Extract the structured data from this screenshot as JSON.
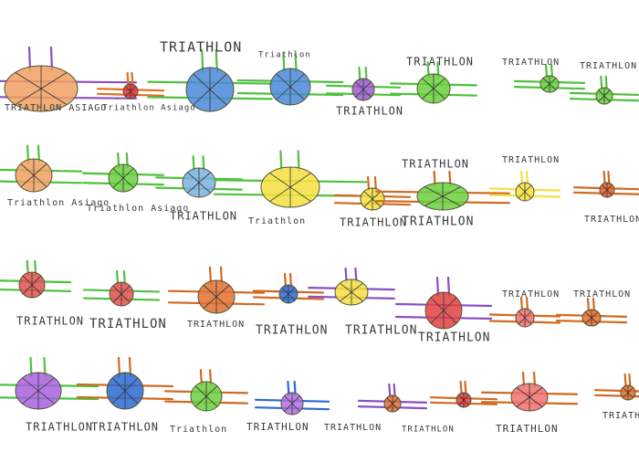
{
  "labels": [
    "TRIATHLON ASIAGO",
    "Triathlon Asiago",
    "TRIATHLON",
    "Triathlon",
    "TRIATHLON",
    "TRIATHLON",
    "TRIATHLON",
    "TRIATHLON",
    "Triathlon Asiago",
    "Triathlon Asiago",
    "TRIATHLON",
    "Triathlon",
    "TRIATHLON",
    "TRIATHLON",
    "TRIATHLON",
    "TRIATHLON",
    "TRIATHLON",
    "TRIATHLON",
    "TRIATHLON",
    "TRIATHLON",
    "TRIATHLON",
    "TRIATHLON",
    "TRIATHLON",
    "TRIATHLON",
    "TRIATHLON",
    "TRIATHLON",
    "TRIATHLON",
    "Triathlon",
    "TRIATHLON",
    "TRIATHLON",
    "TRIATHLON",
    "TRIATHLON",
    "TRIATHLON"
  ],
  "figures": [
    {
      "body": "#f0a060",
      "limbs": "#8a4fc0"
    },
    {
      "body": "#e03030",
      "limbs": "#e07020"
    },
    {
      "body": "#4a8ad8",
      "limbs": "#50c040"
    },
    {
      "body": "#4a8ad8",
      "limbs": "#50c040"
    },
    {
      "body": "#9a5ad0",
      "limbs": "#50c040"
    },
    {
      "body": "#6ad040",
      "limbs": "#50c040"
    },
    {
      "body": "#6ad040",
      "limbs": "#50c040"
    },
    {
      "body": "#6ad040",
      "limbs": "#50c040"
    },
    {
      "body": "#f0a060",
      "limbs": "#50c040"
    },
    {
      "body": "#6ad040",
      "limbs": "#50c040"
    },
    {
      "body": "#7ab0e0",
      "limbs": "#50c040"
    },
    {
      "body": "#f5e040",
      "limbs": "#50c040"
    },
    {
      "body": "#f5e040",
      "limbs": "#d06a20"
    },
    {
      "body": "#6ad040",
      "limbs": "#d06a20"
    },
    {
      "body": "#f5e040",
      "limbs": "#f5e040"
    },
    {
      "body": "#e06030",
      "limbs": "#d06a20"
    },
    {
      "body": "#e05050",
      "limbs": "#50c040"
    },
    {
      "body": "#e05050",
      "limbs": "#50c040"
    },
    {
      "body": "#e07030",
      "limbs": "#d06a20"
    },
    {
      "body": "#2a6ad0",
      "limbs": "#d06a20"
    },
    {
      "body": "#f5e040",
      "limbs": "#8a4fc0"
    },
    {
      "body": "#e04040",
      "limbs": "#8a4fc0"
    },
    {
      "body": "#f07070",
      "limbs": "#d06a20"
    },
    {
      "body": "#e07030",
      "limbs": "#d06a20"
    },
    {
      "body": "#a860e0",
      "limbs": "#50c040"
    },
    {
      "body": "#2a6ad0",
      "limbs": "#d06a20"
    },
    {
      "body": "#6ad040",
      "limbs": "#d06a20"
    },
    {
      "body": "#b070e0",
      "limbs": "#2a6ad0"
    },
    {
      "body": "#e07030",
      "limbs": "#8a4fc0"
    },
    {
      "body": "#e04040",
      "limbs": "#d06a20"
    },
    {
      "body": "#f07070",
      "limbs": "#d06a20"
    },
    {
      "body": "#e07030",
      "limbs": "#d06a20"
    }
  ]
}
